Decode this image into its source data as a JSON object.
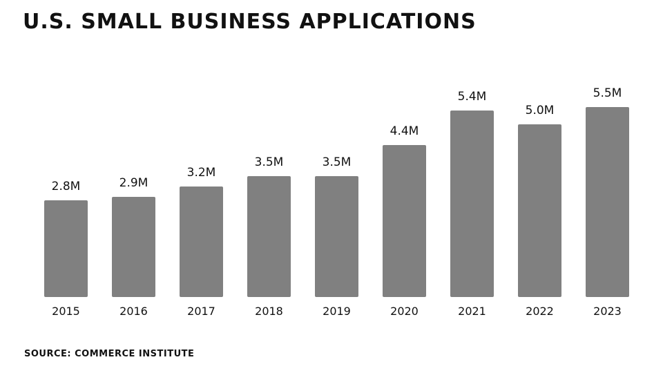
{
  "title": "U.S. SMALL BUSINESS APPLICATIONS",
  "source": "SOURCE: COMMERCE INSTITUTE",
  "chart_data": {
    "type": "bar",
    "categories": [
      "2015",
      "2016",
      "2017",
      "2018",
      "2019",
      "2020",
      "2021",
      "2022",
      "2023"
    ],
    "values": [
      2.8,
      2.9,
      3.2,
      3.5,
      3.5,
      4.4,
      5.4,
      5.0,
      5.5
    ],
    "data_labels": [
      "2.8M",
      "2.9M",
      "3.2M",
      "3.5M",
      "3.5M",
      "4.4M",
      "5.4M",
      "5.0M",
      "5.5M"
    ],
    "unit": "M",
    "ylim": [
      0,
      5.5
    ],
    "grid": false,
    "legend": "none",
    "bar_color": "#808080",
    "text_color": "#111111"
  }
}
